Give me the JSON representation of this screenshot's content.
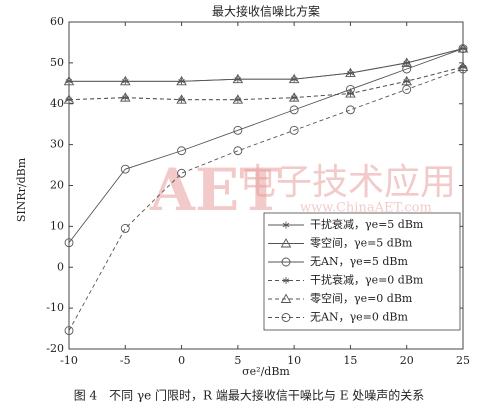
{
  "chart_data": {
    "type": "line",
    "title": "最大接收信噪比方案",
    "x_label": "σe²/dBm",
    "y_label": "SINRr/dBm",
    "caption": "图 4　不同 γe 门限时，R 端最大接收信干噪比与 E 处噪声的关系",
    "watermark": [
      "AET",
      "电子技术应用",
      "www.ChinaAET.com"
    ],
    "x": [
      -10,
      -5,
      0,
      5,
      10,
      15,
      20,
      25
    ],
    "xlim": [
      -10,
      25
    ],
    "xticks": [
      -10,
      -5,
      0,
      5,
      10,
      15,
      20,
      25
    ],
    "ylim": [
      -20,
      60
    ],
    "yticks": [
      -20,
      -10,
      0,
      10,
      20,
      30,
      40,
      50,
      60
    ],
    "legend": "lower right",
    "series": [
      {
        "name": "干扰衰减，γe=5 dBm",
        "color": "#555555",
        "marker": "star",
        "dash": false,
        "values": [
          45.5,
          45.5,
          45.5,
          46,
          46,
          47.5,
          50,
          53.5
        ]
      },
      {
        "name": "零空间，γe=5 dBm",
        "color": "#555555",
        "marker": "triangle",
        "dash": false,
        "values": [
          45.5,
          45.5,
          45.5,
          46,
          46,
          47.5,
          50,
          53.5
        ]
      },
      {
        "name": "无AN，γe=5 dBm",
        "color": "#555555",
        "marker": "circle",
        "dash": false,
        "values": [
          6,
          24,
          28.5,
          33.5,
          38.5,
          43.5,
          48.5,
          53.5
        ]
      },
      {
        "name": "干扰衰减，γe=0 dBm",
        "color": "#555555",
        "marker": "star",
        "dash": true,
        "values": [
          41,
          41.5,
          41,
          41,
          41.5,
          42.5,
          45.5,
          49
        ]
      },
      {
        "name": "零空间，γe=0 dBm",
        "color": "#555555",
        "marker": "triangle",
        "dash": true,
        "values": [
          41,
          41.5,
          41,
          41,
          41.5,
          42.5,
          45.5,
          49
        ]
      },
      {
        "name": "无AN，γe=0 dBm",
        "color": "#555555",
        "marker": "circle",
        "dash": true,
        "values": [
          -15.5,
          9.5,
          23,
          28.5,
          33.5,
          38.5,
          43.5,
          48.5
        ]
      }
    ]
  }
}
